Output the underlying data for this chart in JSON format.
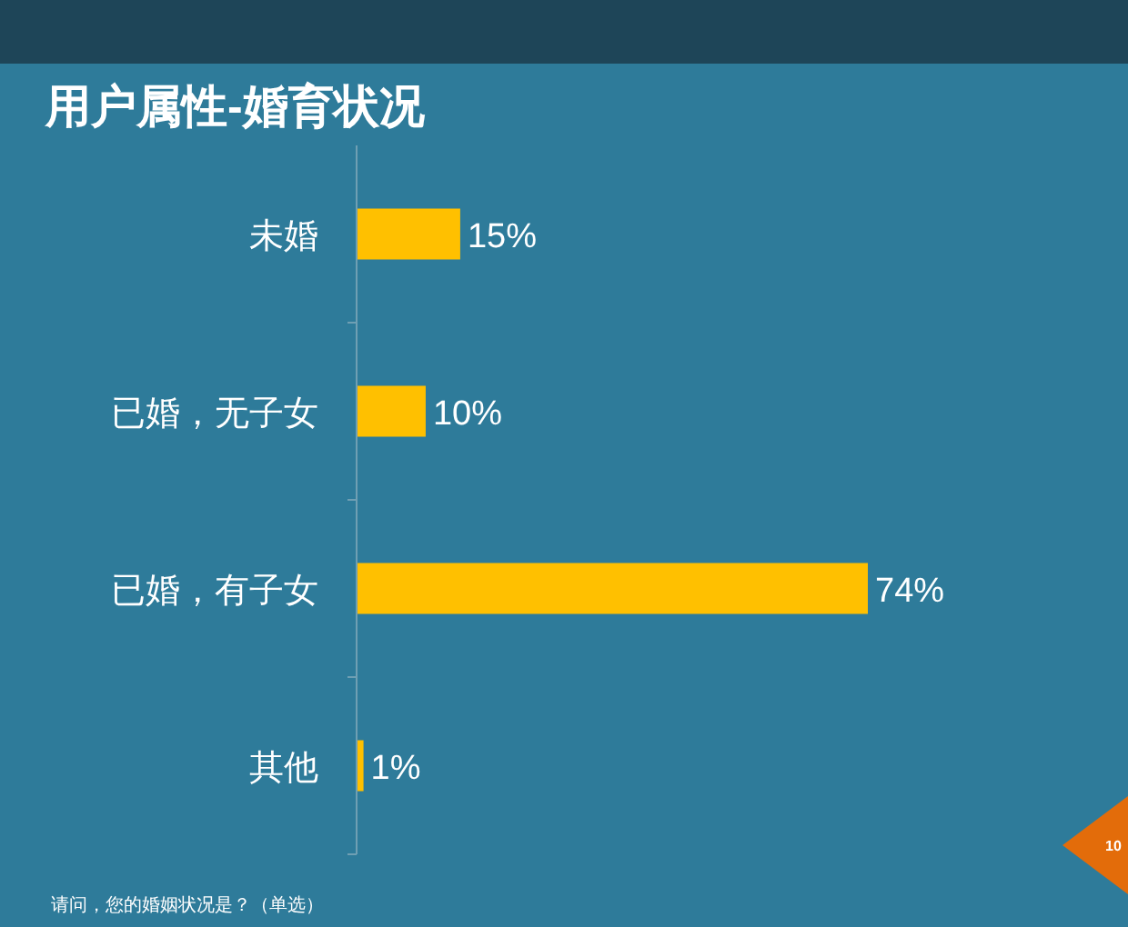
{
  "chart_data": {
    "type": "bar",
    "orientation": "horizontal",
    "title": "用户属性-婚育状况",
    "categories": [
      "未婚",
      "已婚，无子女",
      "已婚，有子女",
      "其他"
    ],
    "values": [
      15,
      10,
      74,
      1
    ],
    "color": "#ffc000",
    "value_labels": [
      "15%",
      "10%",
      "74%",
      "1%"
    ],
    "annotations": [
      "请问，您的婚姻状况是？（单选）",
      "10"
    ]
  }
}
